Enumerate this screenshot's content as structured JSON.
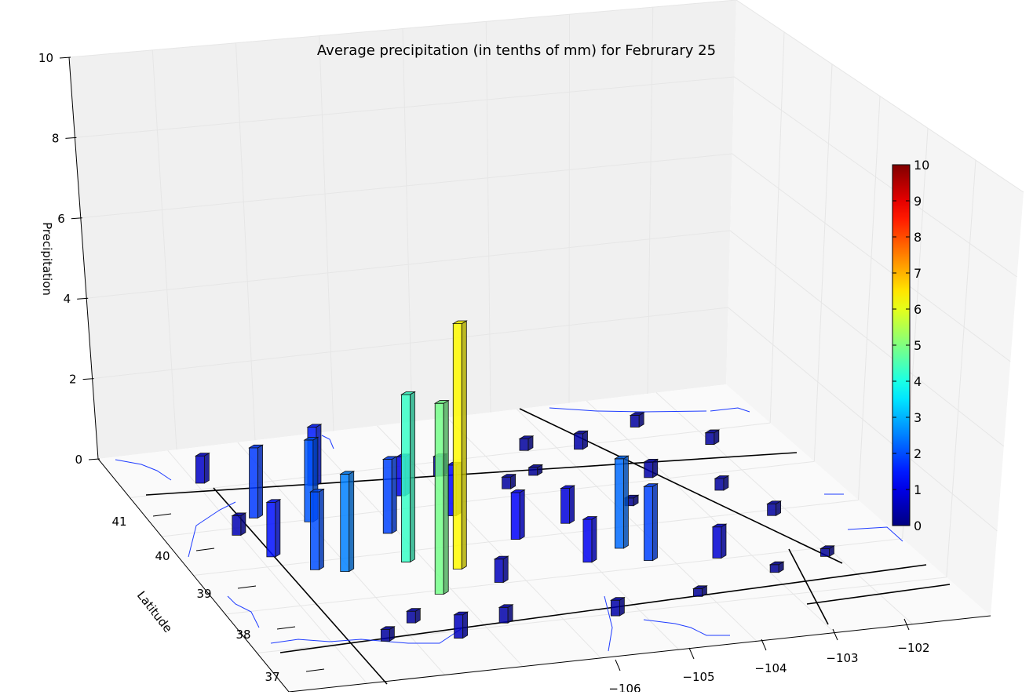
{
  "chart_data": {
    "type": "bar3d",
    "title": "Average precipitation (in tenths of mm) for Februrary 25",
    "xlabel": "",
    "ylabel": "Latitude",
    "zlabel": "Precipitation",
    "xlim": [
      -110,
      -101
    ],
    "ylim": [
      36.5,
      41.5
    ],
    "zlim": [
      0,
      10
    ],
    "x_ticks": [
      "−106",
      "−105",
      "−104",
      "−103",
      "−102"
    ],
    "y_ticks": [
      "37",
      "38",
      "39",
      "40",
      "41"
    ],
    "z_ticks": [
      "0",
      "2",
      "4",
      "6",
      "8",
      "10"
    ],
    "colorbar": {
      "min": 0,
      "max": 10,
      "ticks": [
        "0",
        "1",
        "2",
        "3",
        "4",
        "5",
        "6",
        "7",
        "8",
        "9",
        "10"
      ],
      "colormap": "jet"
    },
    "grid": true,
    "bars": [
      {
        "lon": -106.75,
        "lat": 38.55,
        "value": 6.3
      },
      {
        "lon": -107.3,
        "lat": 38.8,
        "value": 4.3
      },
      {
        "lon": -107.25,
        "lat": 38.1,
        "value": 4.9
      },
      {
        "lon": -104.55,
        "lat": 38.6,
        "value": 2.3
      },
      {
        "lon": -104.35,
        "lat": 38.3,
        "value": 1.9
      },
      {
        "lon": -108.05,
        "lat": 39.8,
        "value": 2.1
      },
      {
        "lon": -108.15,
        "lat": 38.75,
        "value": 2.5
      },
      {
        "lon": -108.5,
        "lat": 38.85,
        "value": 2.0
      },
      {
        "lon": -107.2,
        "lat": 39.4,
        "value": 1.9
      },
      {
        "lon": -108.7,
        "lat": 40.0,
        "value": 1.8
      },
      {
        "lon": -107.6,
        "lat": 40.5,
        "value": 1.5
      },
      {
        "lon": -108.9,
        "lat": 39.2,
        "value": 1.4
      },
      {
        "lon": -105.7,
        "lat": 39.0,
        "value": 1.2
      },
      {
        "lon": -106.2,
        "lat": 39.6,
        "value": 1.3
      },
      {
        "lon": -105.1,
        "lat": 38.4,
        "value": 1.1
      },
      {
        "lon": -103.5,
        "lat": 38.2,
        "value": 0.8
      },
      {
        "lon": -104.9,
        "lat": 39.2,
        "value": 0.9
      },
      {
        "lon": -106.6,
        "lat": 40.1,
        "value": 1.0
      },
      {
        "lon": -109.0,
        "lat": 40.8,
        "value": 0.7
      },
      {
        "lon": -109.1,
        "lat": 39.7,
        "value": 0.5
      },
      {
        "lon": -103.3,
        "lat": 39.9,
        "value": 0.4
      },
      {
        "lon": -102.6,
        "lat": 39.5,
        "value": 0.3
      },
      {
        "lon": -102.3,
        "lat": 38.9,
        "value": 0.3
      },
      {
        "lon": -103.8,
        "lat": 40.6,
        "value": 0.4
      },
      {
        "lon": -104.5,
        "lat": 40.7,
        "value": 0.3
      },
      {
        "lon": -102.8,
        "lat": 40.9,
        "value": 0.3
      },
      {
        "lon": -106.8,
        "lat": 37.4,
        "value": 0.4
      },
      {
        "lon": -107.9,
        "lat": 37.6,
        "value": 0.3
      },
      {
        "lon": -105.4,
        "lat": 37.3,
        "value": 0.4
      },
      {
        "lon": -104.2,
        "lat": 37.5,
        "value": 0.2
      },
      {
        "lon": -103.0,
        "lat": 37.8,
        "value": 0.2
      },
      {
        "lon": -102.2,
        "lat": 38.0,
        "value": 0.2
      },
      {
        "lon": -105.9,
        "lat": 40.4,
        "value": 0.5
      },
      {
        "lon": -106.4,
        "lat": 38.2,
        "value": 0.6
      },
      {
        "lon": -105.2,
        "lat": 40.0,
        "value": 0.3
      },
      {
        "lon": -103.9,
        "lat": 39.4,
        "value": 0.2
      },
      {
        "lon": -104.7,
        "lat": 40.2,
        "value": 0.2
      },
      {
        "lon": -102.1,
        "lat": 40.4,
        "value": 0.3
      },
      {
        "lon": -108.4,
        "lat": 37.3,
        "value": 0.3
      },
      {
        "lon": -107.5,
        "lat": 37.2,
        "value": 0.6
      }
    ]
  }
}
